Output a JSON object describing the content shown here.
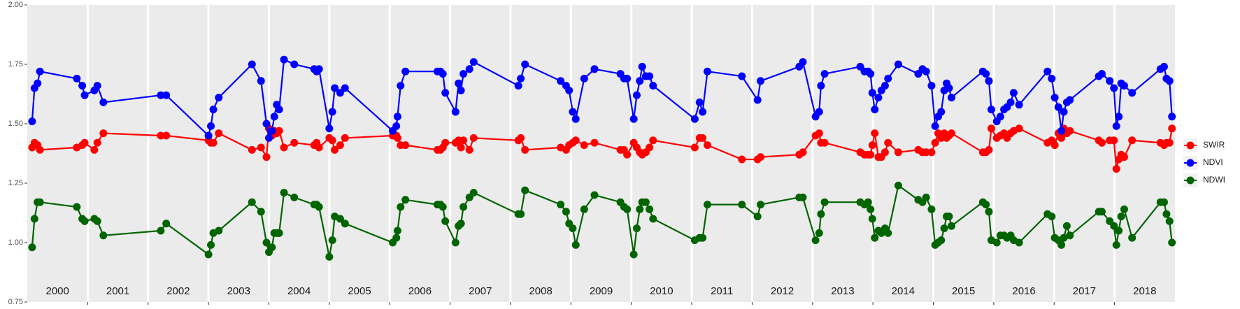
{
  "chart_data": {
    "type": "line",
    "x": [
      2000.08,
      2000.12,
      2000.17,
      2000.21,
      2000.82,
      2000.91,
      2000.95,
      2001.11,
      2001.16,
      2001.26,
      2002.21,
      2002.3,
      2003.0,
      2003.04,
      2003.08,
      2003.17,
      2003.72,
      2003.87,
      2003.96,
      2004.0,
      2004.05,
      2004.09,
      2004.13,
      2004.17,
      2004.25,
      2004.42,
      2004.75,
      2004.79,
      2004.83,
      2005.0,
      2005.05,
      2005.09,
      2005.18,
      2005.26,
      2006.05,
      2006.11,
      2006.13,
      2006.18,
      2006.26,
      2006.79,
      2006.84,
      2006.88,
      2006.92,
      2007.09,
      2007.14,
      2007.18,
      2007.22,
      2007.32,
      2007.39,
      2008.13,
      2008.17,
      2008.24,
      2008.83,
      2008.92,
      2008.97,
      2009.03,
      2009.08,
      2009.22,
      2009.39,
      2009.82,
      2009.88,
      2009.93,
      2010.04,
      2010.09,
      2010.14,
      2010.18,
      2010.24,
      2010.3,
      2010.36,
      2011.05,
      2011.13,
      2011.18,
      2011.26,
      2011.83,
      2012.09,
      2012.14,
      2012.78,
      2012.84,
      2013.05,
      2013.11,
      2013.14,
      2013.2,
      2013.79,
      2013.86,
      2013.92,
      2013.96,
      2013.99,
      2014.03,
      2014.09,
      2014.14,
      2014.2,
      2014.25,
      2014.42,
      2014.75,
      2014.82,
      2014.88,
      2014.97,
      2015.03,
      2015.08,
      2015.13,
      2015.18,
      2015.22,
      2015.26,
      2015.3,
      2015.82,
      2015.87,
      2015.92,
      2015.96,
      2016.05,
      2016.11,
      2016.17,
      2016.22,
      2016.28,
      2016.33,
      2016.42,
      2016.89,
      2016.96,
      2017.01,
      2017.07,
      2017.12,
      2017.16,
      2017.21,
      2017.26,
      2017.74,
      2017.79,
      2017.92,
      2017.99,
      2018.03,
      2018.07,
      2018.11,
      2018.16,
      2018.29,
      2018.76,
      2018.82,
      2018.86,
      2018.91,
      2018.95
    ],
    "series": [
      {
        "name": "SWIR",
        "color": "#ff0000",
        "values": [
          1.4,
          1.42,
          1.41,
          1.39,
          1.4,
          1.41,
          1.42,
          1.39,
          1.42,
          1.46,
          1.45,
          1.45,
          1.43,
          1.42,
          1.42,
          1.46,
          1.39,
          1.4,
          1.36,
          1.48,
          1.45,
          1.47,
          1.46,
          1.47,
          1.4,
          1.42,
          1.41,
          1.42,
          1.4,
          1.44,
          1.43,
          1.39,
          1.41,
          1.44,
          1.45,
          1.45,
          1.44,
          1.41,
          1.41,
          1.39,
          1.39,
          1.4,
          1.42,
          1.42,
          1.43,
          1.4,
          1.43,
          1.39,
          1.44,
          1.43,
          1.44,
          1.39,
          1.4,
          1.39,
          1.41,
          1.42,
          1.43,
          1.41,
          1.42,
          1.39,
          1.39,
          1.37,
          1.42,
          1.4,
          1.38,
          1.37,
          1.38,
          1.4,
          1.43,
          1.4,
          1.44,
          1.44,
          1.41,
          1.35,
          1.35,
          1.36,
          1.37,
          1.38,
          1.45,
          1.46,
          1.42,
          1.42,
          1.38,
          1.37,
          1.37,
          1.37,
          1.41,
          1.46,
          1.36,
          1.36,
          1.38,
          1.42,
          1.38,
          1.39,
          1.38,
          1.38,
          1.38,
          1.42,
          1.46,
          1.44,
          1.46,
          1.44,
          1.45,
          1.46,
          1.38,
          1.38,
          1.39,
          1.48,
          1.44,
          1.45,
          1.46,
          1.44,
          1.46,
          1.47,
          1.48,
          1.42,
          1.43,
          1.41,
          1.46,
          1.44,
          1.48,
          1.46,
          1.47,
          1.43,
          1.42,
          1.43,
          1.43,
          1.31,
          1.35,
          1.37,
          1.36,
          1.43,
          1.42,
          1.41,
          1.42,
          1.42,
          1.48
        ]
      },
      {
        "name": "NDVI",
        "color": "#0000ff",
        "values": [
          1.51,
          1.65,
          1.67,
          1.72,
          1.69,
          1.66,
          1.62,
          1.64,
          1.66,
          1.59,
          1.62,
          1.62,
          1.45,
          1.49,
          1.56,
          1.61,
          1.75,
          1.68,
          1.5,
          1.44,
          1.47,
          1.53,
          1.58,
          1.56,
          1.77,
          1.75,
          1.73,
          1.72,
          1.73,
          1.48,
          1.55,
          1.65,
          1.63,
          1.65,
          1.47,
          1.49,
          1.53,
          1.66,
          1.72,
          1.72,
          1.72,
          1.71,
          1.63,
          1.55,
          1.67,
          1.64,
          1.71,
          1.73,
          1.76,
          1.66,
          1.69,
          1.75,
          1.68,
          1.66,
          1.64,
          1.55,
          1.52,
          1.69,
          1.73,
          1.71,
          1.69,
          1.69,
          1.52,
          1.62,
          1.68,
          1.74,
          1.7,
          1.7,
          1.66,
          1.52,
          1.59,
          1.55,
          1.72,
          1.7,
          1.6,
          1.68,
          1.74,
          1.76,
          1.53,
          1.55,
          1.66,
          1.71,
          1.74,
          1.72,
          1.72,
          1.71,
          1.63,
          1.56,
          1.61,
          1.64,
          1.66,
          1.69,
          1.75,
          1.71,
          1.73,
          1.72,
          1.66,
          1.49,
          1.53,
          1.55,
          1.64,
          1.67,
          1.65,
          1.61,
          1.72,
          1.71,
          1.68,
          1.56,
          1.51,
          1.53,
          1.56,
          1.57,
          1.59,
          1.63,
          1.58,
          1.72,
          1.69,
          1.61,
          1.57,
          1.47,
          1.55,
          1.59,
          1.6,
          1.7,
          1.71,
          1.68,
          1.65,
          1.49,
          1.53,
          1.67,
          1.66,
          1.63,
          1.73,
          1.74,
          1.69,
          1.68,
          1.53
        ]
      },
      {
        "name": "NDWI",
        "color": "#006400",
        "values": [
          0.98,
          1.1,
          1.17,
          1.17,
          1.15,
          1.1,
          1.09,
          1.1,
          1.09,
          1.03,
          1.05,
          1.08,
          0.95,
          0.99,
          1.04,
          1.05,
          1.17,
          1.13,
          1.0,
          0.96,
          0.98,
          1.04,
          1.04,
          1.04,
          1.21,
          1.19,
          1.16,
          1.16,
          1.15,
          0.94,
          1.01,
          1.11,
          1.1,
          1.08,
          1.0,
          1.02,
          1.05,
          1.15,
          1.18,
          1.16,
          1.16,
          1.15,
          1.09,
          1.0,
          1.07,
          1.08,
          1.15,
          1.19,
          1.21,
          1.12,
          1.12,
          1.22,
          1.16,
          1.13,
          1.08,
          1.06,
          0.99,
          1.14,
          1.2,
          1.17,
          1.15,
          1.14,
          0.95,
          1.06,
          1.14,
          1.17,
          1.17,
          1.14,
          1.1,
          1.01,
          1.02,
          1.02,
          1.16,
          1.16,
          1.11,
          1.16,
          1.19,
          1.19,
          1.01,
          1.04,
          1.12,
          1.17,
          1.17,
          1.16,
          1.17,
          1.14,
          1.1,
          1.02,
          1.05,
          1.04,
          1.06,
          1.04,
          1.24,
          1.18,
          1.17,
          1.19,
          1.14,
          0.99,
          1.0,
          1.01,
          1.06,
          1.11,
          1.11,
          1.07,
          1.17,
          1.16,
          1.13,
          1.01,
          1.0,
          1.03,
          1.03,
          1.02,
          1.03,
          1.01,
          1.0,
          1.12,
          1.11,
          1.02,
          1.01,
          0.99,
          1.02,
          1.07,
          1.03,
          1.13,
          1.13,
          1.09,
          1.07,
          0.99,
          1.05,
          1.11,
          1.14,
          1.02,
          1.17,
          1.17,
          1.12,
          1.09,
          1.0
        ]
      }
    ],
    "xlim": [
      2000,
      2019
    ],
    "xticks": [
      2001,
      2002,
      2003,
      2004,
      2005,
      2006,
      2007,
      2008,
      2009,
      2010,
      2011,
      2012,
      2013,
      2014,
      2015,
      2016,
      2017,
      2018
    ],
    "year_labels": [
      {
        "value": 2000.5,
        "label": "2000"
      },
      {
        "value": 2001.5,
        "label": "2001"
      },
      {
        "value": 2002.5,
        "label": "2002"
      },
      {
        "value": 2003.5,
        "label": "2003"
      },
      {
        "value": 2004.5,
        "label": "2004"
      },
      {
        "value": 2005.5,
        "label": "2005"
      },
      {
        "value": 2006.5,
        "label": "2006"
      },
      {
        "value": 2007.5,
        "label": "2007"
      },
      {
        "value": 2008.5,
        "label": "2008"
      },
      {
        "value": 2009.5,
        "label": "2009"
      },
      {
        "value": 2010.5,
        "label": "2010"
      },
      {
        "value": 2011.5,
        "label": "2011"
      },
      {
        "value": 2012.5,
        "label": "2012"
      },
      {
        "value": 2013.5,
        "label": "2013"
      },
      {
        "value": 2014.5,
        "label": "2014"
      },
      {
        "value": 2015.5,
        "label": "2015"
      },
      {
        "value": 2016.5,
        "label": "2016"
      },
      {
        "value": 2017.5,
        "label": "2017"
      },
      {
        "value": 2018.5,
        "label": "2018"
      }
    ],
    "ylim": [
      0.75,
      2.0
    ],
    "yticks": [
      {
        "value": 0.75,
        "label": "0.75"
      },
      {
        "value": 1,
        "label": "1.00"
      },
      {
        "value": 1.25,
        "label": "1.25"
      },
      {
        "value": 1.5,
        "label": "1.50"
      },
      {
        "value": 1.75,
        "label": "1.75"
      },
      {
        "value": 2,
        "label": "2.00"
      }
    ],
    "grid": true,
    "legend": "right"
  }
}
